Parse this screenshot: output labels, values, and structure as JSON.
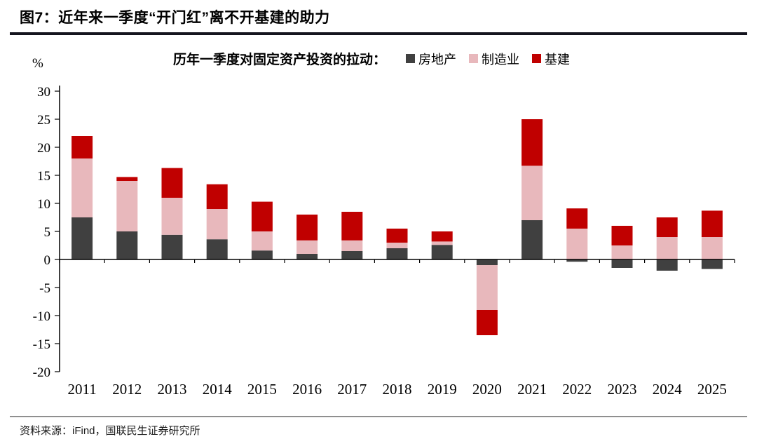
{
  "header": {
    "title": "图7：近年来一季度“开门红”离不开基建的助力"
  },
  "chart": {
    "title": "历年一季度对固定资产投资的拉动：",
    "ylabel": "%"
  },
  "chart_data": {
    "type": "bar",
    "stacked": true,
    "title": "历年一季度对固定资产投资的拉动",
    "ylabel": "%",
    "ylim": [
      -20,
      30
    ],
    "ytick_step": 5,
    "grid": false,
    "legend_position": "top",
    "categories": [
      "2011",
      "2012",
      "2013",
      "2014",
      "2015",
      "2016",
      "2017",
      "2018",
      "2019",
      "2020",
      "2021",
      "2022",
      "2023",
      "2024",
      "2025"
    ],
    "series": [
      {
        "name": "房地产",
        "color": "#404040",
        "values": [
          7.5,
          5.0,
          4.4,
          3.6,
          1.6,
          1.0,
          1.5,
          2.0,
          2.6,
          -1.0,
          7.0,
          -0.4,
          -1.5,
          -2.0,
          -1.7
        ]
      },
      {
        "name": "制造业",
        "color": "#e8b8bc",
        "values": [
          10.5,
          9.0,
          6.6,
          5.4,
          3.4,
          2.4,
          1.9,
          1.0,
          0.6,
          -8.0,
          9.7,
          5.5,
          2.5,
          4.0,
          4.0
        ]
      },
      {
        "name": "基建",
        "color": "#c00000",
        "values": [
          4.0,
          0.7,
          5.3,
          4.4,
          5.3,
          4.6,
          5.1,
          2.5,
          1.8,
          -4.5,
          8.3,
          3.6,
          3.5,
          3.5,
          4.7
        ]
      }
    ]
  },
  "footer": {
    "source": "资料来源：iFind，国联民生证券研究所"
  }
}
